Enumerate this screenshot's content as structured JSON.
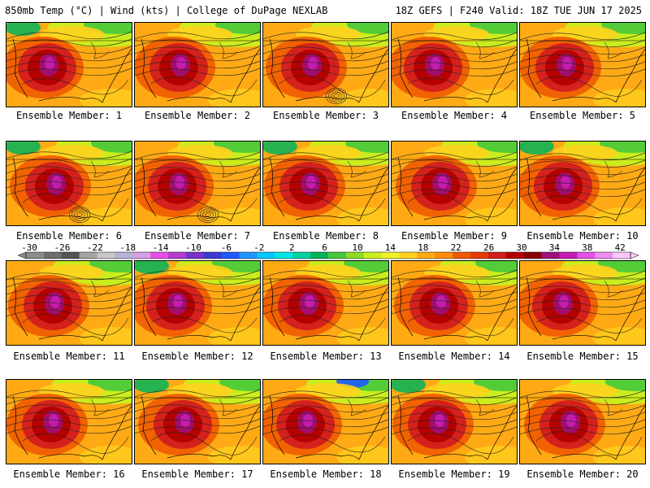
{
  "header": {
    "left": "850mb Temp (°C) | Wind (kts) | College of DuPage NEXLAB",
    "right": "18Z GEFS | F240 Valid: 18Z TUE JUN 17 2025"
  },
  "member_caption_prefix": "Ensemble Member:",
  "members": [
    "1",
    "2",
    "3",
    "4",
    "5",
    "6",
    "7",
    "8",
    "9",
    "10",
    "11",
    "12",
    "13",
    "14",
    "15",
    "16",
    "17",
    "18",
    "19",
    "20"
  ],
  "colorbar": {
    "labels": [
      "-30",
      "-26",
      "-22",
      "-18",
      "-14",
      "-10",
      "-6",
      "-2",
      "2",
      "6",
      "10",
      "14",
      "18",
      "22",
      "26",
      "30",
      "34",
      "38",
      "42"
    ],
    "colors": [
      "#8c8c8c",
      "#6e6e6e",
      "#555555",
      "#a4a4a4",
      "#c8c8c8",
      "#b4b4d6",
      "#d6a0e6",
      "#e650e6",
      "#b43cd2",
      "#7832c8",
      "#3c3cd2",
      "#1e5aff",
      "#1e96ff",
      "#00c8ff",
      "#00e6e6",
      "#00d2a0",
      "#00b45a",
      "#46c83c",
      "#8cdc28",
      "#c8f01e",
      "#f0f028",
      "#ffd21e",
      "#ffaa14",
      "#ff8c0a",
      "#f05a00",
      "#e63c00",
      "#d21e1e",
      "#b40000",
      "#8c0000",
      "#a0107a",
      "#c81eb4",
      "#e650e6",
      "#f08cf0",
      "#fac8fa"
    ]
  }
}
